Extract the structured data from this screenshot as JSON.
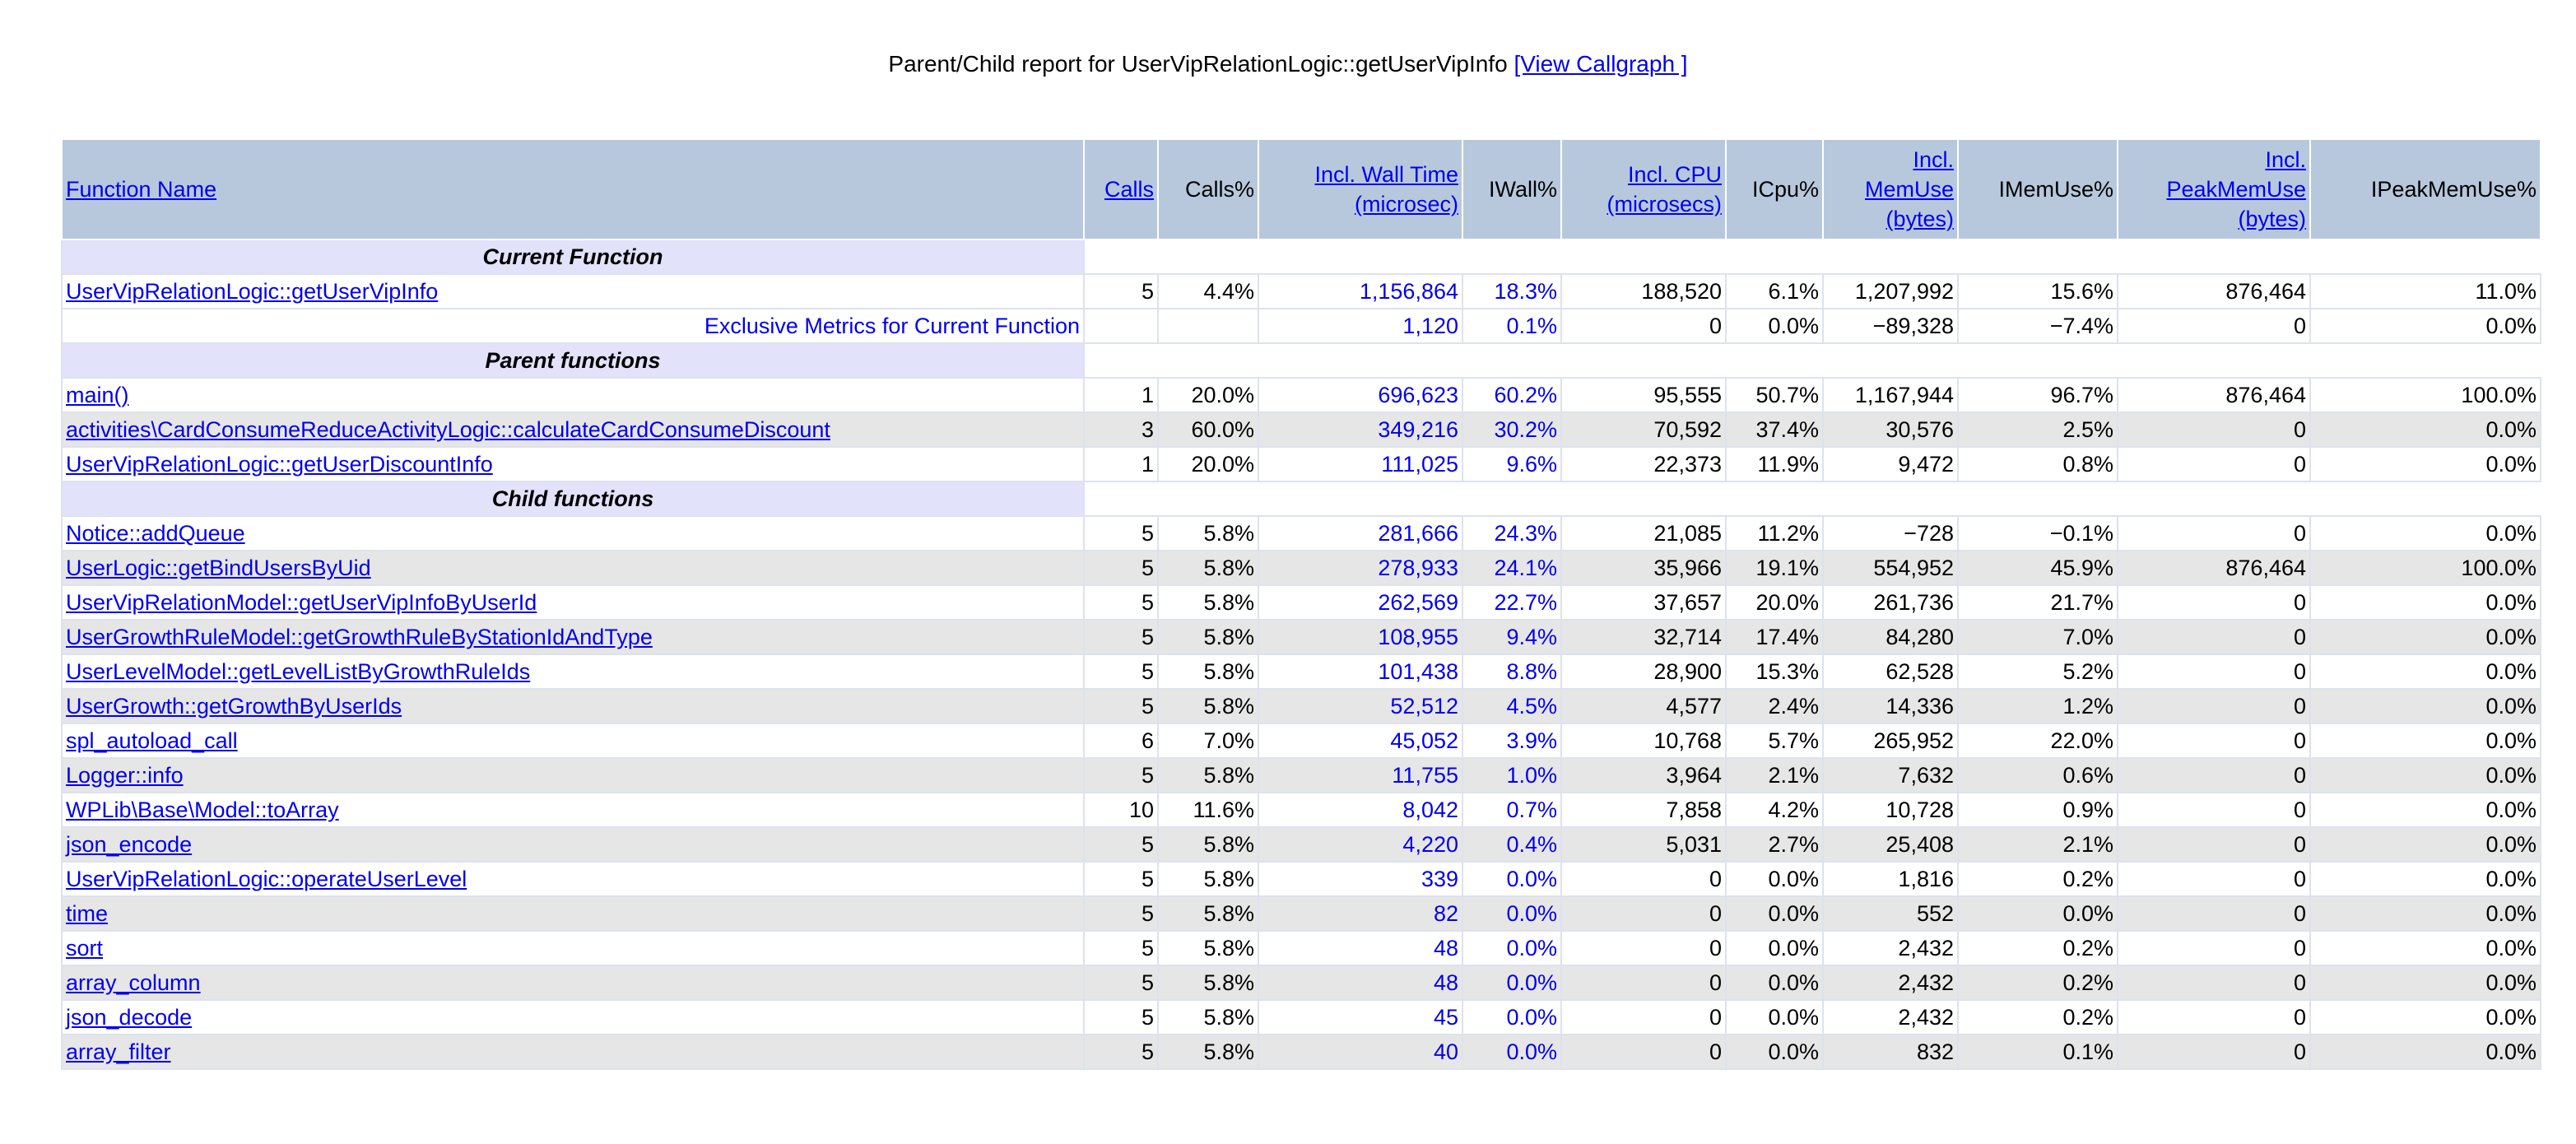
{
  "title": {
    "prefix": "Parent/Child report for UserVipRelationLogic::getUserVipInfo",
    "link": "[View Callgraph ]"
  },
  "headers": [
    {
      "label": "Function Name",
      "link": true
    },
    {
      "label": "Calls",
      "link": true
    },
    {
      "label": "Calls%",
      "link": false
    },
    {
      "label": "Incl. Wall Time (microsec)",
      "link": true
    },
    {
      "label": "IWall%",
      "link": false
    },
    {
      "label": "Incl. CPU (microsecs)",
      "link": true
    },
    {
      "label": "ICpu%",
      "link": false
    },
    {
      "label": "Incl. MemUse (bytes)",
      "link": true
    },
    {
      "label": "IMemUse%",
      "link": false
    },
    {
      "label": "Incl. PeakMemUse (bytes)",
      "link": true
    },
    {
      "label": "IPeakMemUse%",
      "link": false
    }
  ],
  "sections": {
    "current": "Current Function",
    "parents": "Parent functions",
    "children": "Child functions"
  },
  "current_row": [
    "UserVipRelationLogic::getUserVipInfo",
    "5",
    "4.4%",
    "1,156,864",
    "18.3%",
    "188,520",
    "6.1%",
    "1,207,992",
    "15.6%",
    "876,464",
    "11.0%"
  ],
  "exclusive_row": [
    "Exclusive Metrics for Current Function",
    "",
    "",
    "1,120",
    "0.1%",
    "0",
    "0.0%",
    "−89,328",
    "−7.4%",
    "0",
    "0.0%"
  ],
  "parent_rows": [
    [
      "main()",
      "1",
      "20.0%",
      "696,623",
      "60.2%",
      "95,555",
      "50.7%",
      "1,167,944",
      "96.7%",
      "876,464",
      "100.0%"
    ],
    [
      "activities\\CardConsumeReduceActivityLogic::calculateCardConsumeDiscount",
      "3",
      "60.0%",
      "349,216",
      "30.2%",
      "70,592",
      "37.4%",
      "30,576",
      "2.5%",
      "0",
      "0.0%"
    ],
    [
      "UserVipRelationLogic::getUserDiscountInfo",
      "1",
      "20.0%",
      "111,025",
      "9.6%",
      "22,373",
      "11.9%",
      "9,472",
      "0.8%",
      "0",
      "0.0%"
    ]
  ],
  "child_rows": [
    [
      "Notice::addQueue",
      "5",
      "5.8%",
      "281,666",
      "24.3%",
      "21,085",
      "11.2%",
      "−728",
      "−0.1%",
      "0",
      "0.0%"
    ],
    [
      "UserLogic::getBindUsersByUid",
      "5",
      "5.8%",
      "278,933",
      "24.1%",
      "35,966",
      "19.1%",
      "554,952",
      "45.9%",
      "876,464",
      "100.0%"
    ],
    [
      "UserVipRelationModel::getUserVipInfoByUserId",
      "5",
      "5.8%",
      "262,569",
      "22.7%",
      "37,657",
      "20.0%",
      "261,736",
      "21.7%",
      "0",
      "0.0%"
    ],
    [
      "UserGrowthRuleModel::getGrowthRuleByStationIdAndType",
      "5",
      "5.8%",
      "108,955",
      "9.4%",
      "32,714",
      "17.4%",
      "84,280",
      "7.0%",
      "0",
      "0.0%"
    ],
    [
      "UserLevelModel::getLevelListByGrowthRuleIds",
      "5",
      "5.8%",
      "101,438",
      "8.8%",
      "28,900",
      "15.3%",
      "62,528",
      "5.2%",
      "0",
      "0.0%"
    ],
    [
      "UserGrowth::getGrowthByUserIds",
      "5",
      "5.8%",
      "52,512",
      "4.5%",
      "4,577",
      "2.4%",
      "14,336",
      "1.2%",
      "0",
      "0.0%"
    ],
    [
      "spl_autoload_call",
      "6",
      "7.0%",
      "45,052",
      "3.9%",
      "10,768",
      "5.7%",
      "265,952",
      "22.0%",
      "0",
      "0.0%"
    ],
    [
      "Logger::info",
      "5",
      "5.8%",
      "11,755",
      "1.0%",
      "3,964",
      "2.1%",
      "7,632",
      "0.6%",
      "0",
      "0.0%"
    ],
    [
      "WPLib\\Base\\Model::toArray",
      "10",
      "11.6%",
      "8,042",
      "0.7%",
      "7,858",
      "4.2%",
      "10,728",
      "0.9%",
      "0",
      "0.0%"
    ],
    [
      "json_encode",
      "5",
      "5.8%",
      "4,220",
      "0.4%",
      "5,031",
      "2.7%",
      "25,408",
      "2.1%",
      "0",
      "0.0%"
    ],
    [
      "UserVipRelationLogic::operateUserLevel",
      "5",
      "5.8%",
      "339",
      "0.0%",
      "0",
      "0.0%",
      "1,816",
      "0.2%",
      "0",
      "0.0%"
    ],
    [
      "time",
      "5",
      "5.8%",
      "82",
      "0.0%",
      "0",
      "0.0%",
      "552",
      "0.0%",
      "0",
      "0.0%"
    ],
    [
      "sort",
      "5",
      "5.8%",
      "48",
      "0.0%",
      "0",
      "0.0%",
      "2,432",
      "0.2%",
      "0",
      "0.0%"
    ],
    [
      "array_column",
      "5",
      "5.8%",
      "48",
      "0.0%",
      "0",
      "0.0%",
      "2,432",
      "0.2%",
      "0",
      "0.0%"
    ],
    [
      "json_decode",
      "5",
      "5.8%",
      "45",
      "0.0%",
      "0",
      "0.0%",
      "2,432",
      "0.2%",
      "0",
      "0.0%"
    ],
    [
      "array_filter",
      "5",
      "5.8%",
      "40",
      "0.0%",
      "0",
      "0.0%",
      "832",
      "0.1%",
      "0",
      "0.0%"
    ]
  ],
  "colors": {
    "header_bg": "#b7c8dd",
    "section_bg": "#e2e2fa",
    "row_alt_bg": "#e6e6e6",
    "link": "#0000ee"
  }
}
